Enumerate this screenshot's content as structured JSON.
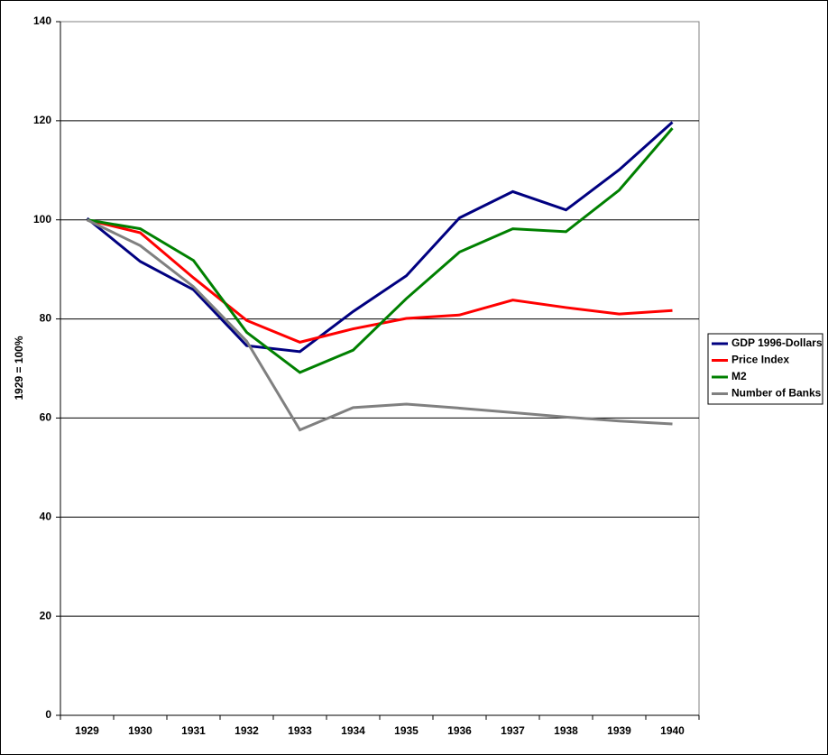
{
  "chart_data": {
    "type": "line",
    "y_label": "1929 = 100%",
    "categories": [
      "1929",
      "1930",
      "1931",
      "1932",
      "1933",
      "1934",
      "1935",
      "1936",
      "1937",
      "1938",
      "1939",
      "1940"
    ],
    "series": [
      {
        "name": "GDP 1996-Dollars",
        "color": "#000080",
        "values": [
          100.3,
          91.6,
          85.9,
          74.6,
          73.4,
          81.5,
          88.7,
          100.4,
          105.7,
          102.0,
          110.1,
          119.7
        ]
      },
      {
        "name": "Price Index",
        "color": "#ff0000",
        "values": [
          100,
          97.4,
          88.3,
          79.7,
          75.3,
          78.0,
          80.1,
          80.8,
          83.8,
          82.3,
          81.0,
          81.7
        ]
      },
      {
        "name": "M2",
        "color": "#008000",
        "values": [
          100,
          98.2,
          91.8,
          77.3,
          69.2,
          73.7,
          84.1,
          93.5,
          98.2,
          97.6,
          106.0,
          118.5
        ]
      },
      {
        "name": "Number of Banks",
        "color": "#808080",
        "values": [
          100,
          94.8,
          86.5,
          75.5,
          57.6,
          62.1,
          62.8,
          62.0,
          61.1,
          60.2,
          59.4,
          58.8
        ]
      }
    ],
    "ylim": [
      0,
      140
    ],
    "yticks": [
      0,
      20,
      40,
      60,
      80,
      100,
      120,
      140
    ],
    "grid": true,
    "legend": "right"
  }
}
